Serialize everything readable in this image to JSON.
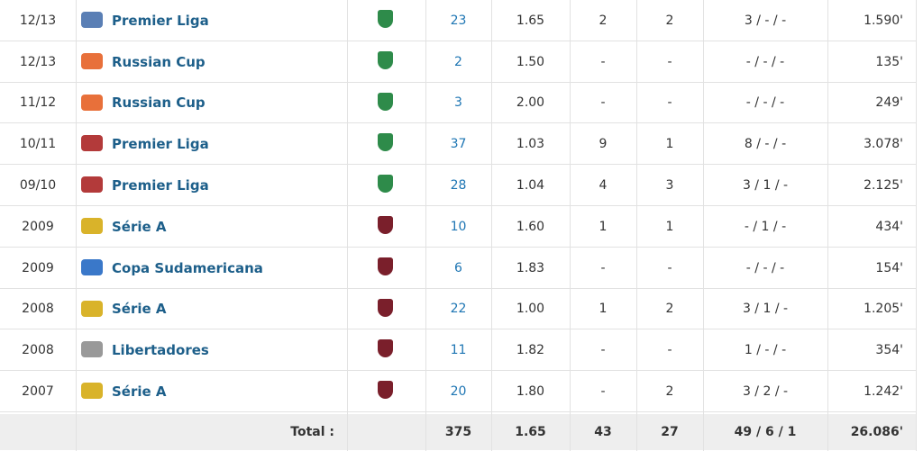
{
  "table": {
    "rows": [
      {
        "season": "12/13",
        "competition": "Premier Liga",
        "apps": "23",
        "ppm": "1.65",
        "goals": "2",
        "assists": "2",
        "cards": "3 / - / -",
        "minutes": "1.590'"
      },
      {
        "season": "12/13",
        "competition": "Russian Cup",
        "apps": "2",
        "ppm": "1.50",
        "goals": "-",
        "assists": "-",
        "cards": "- / - / -",
        "minutes": "135'"
      },
      {
        "season": "11/12",
        "competition": "Russian Cup",
        "apps": "3",
        "ppm": "2.00",
        "goals": "-",
        "assists": "-",
        "cards": "- / - / -",
        "minutes": "249'"
      },
      {
        "season": "10/11",
        "competition": "Premier Liga",
        "apps": "37",
        "ppm": "1.03",
        "goals": "9",
        "assists": "1",
        "cards": "8 / - / -",
        "minutes": "3.078'"
      },
      {
        "season": "09/10",
        "competition": "Premier Liga",
        "apps": "28",
        "ppm": "1.04",
        "goals": "4",
        "assists": "3",
        "cards": "3 / 1 / -",
        "minutes": "2.125'"
      },
      {
        "season": "2009",
        "competition": "Série A",
        "apps": "10",
        "ppm": "1.60",
        "goals": "1",
        "assists": "1",
        "cards": "- / 1 / -",
        "minutes": "434'"
      },
      {
        "season": "2009",
        "competition": "Copa Sudamericana",
        "apps": "6",
        "ppm": "1.83",
        "goals": "-",
        "assists": "-",
        "cards": "- / - / -",
        "minutes": "154'"
      },
      {
        "season": "2008",
        "competition": "Série A",
        "apps": "22",
        "ppm": "1.00",
        "goals": "1",
        "assists": "2",
        "cards": "3 / 1 / -",
        "minutes": "1.205'"
      },
      {
        "season": "2008",
        "competition": "Libertadores",
        "apps": "11",
        "ppm": "1.82",
        "goals": "-",
        "assists": "-",
        "cards": "1 / - / -",
        "minutes": "354'"
      },
      {
        "season": "2007",
        "competition": "Série A",
        "apps": "20",
        "ppm": "1.80",
        "goals": "-",
        "assists": "2",
        "cards": "3 / 2 / -",
        "minutes": "1.242'"
      }
    ],
    "total": {
      "label": "Total :",
      "apps": "375",
      "ppm": "1.65",
      "goals": "43",
      "assists": "27",
      "cards": "49 / 6 / 1",
      "minutes": "26.086'"
    }
  }
}
